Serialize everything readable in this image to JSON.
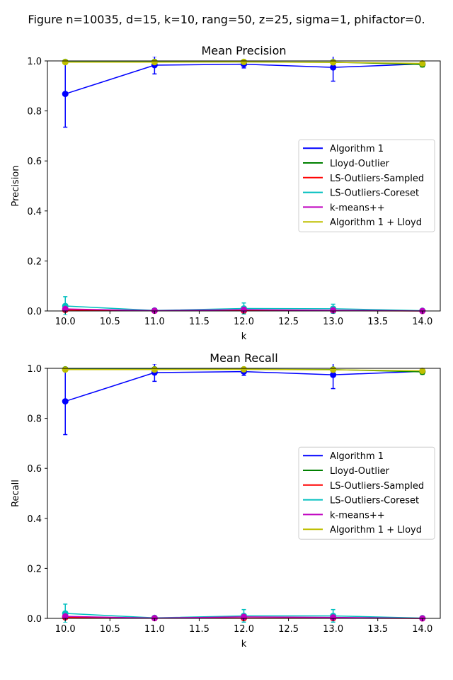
{
  "suptitle": "Figure n=10035, d=15, k=10, rang=50, z=25, sigma=1, phifactor=0.",
  "chart_data": [
    {
      "type": "line",
      "title": "Mean Precision",
      "xlabel": "k",
      "ylabel": "Precision",
      "xlim": [
        9.8,
        14.2
      ],
      "ylim": [
        0,
        1
      ],
      "xticks": [
        "10.0",
        "10.5",
        "11.0",
        "11.5",
        "12.0",
        "12.5",
        "13.0",
        "13.5",
        "14.0"
      ],
      "yticks": [
        "0.0",
        "0.2",
        "0.4",
        "0.6",
        "0.8",
        "1.0"
      ],
      "grid": false,
      "legend_position": "center-right",
      "x": [
        10,
        11,
        12,
        13,
        14
      ],
      "series": [
        {
          "name": "Algorithm 1",
          "color": "#0000ff",
          "values": [
            0.868,
            0.983,
            0.987,
            0.974,
            0.988
          ],
          "err": [
            0.133,
            0.035,
            0.015,
            0.055,
            0.008
          ]
        },
        {
          "name": "Lloyd-Outlier",
          "color": "#008000",
          "values": [
            0.996,
            0.996,
            0.996,
            0.995,
            0.986
          ],
          "err": [
            0.006,
            0.004,
            0.004,
            0.005,
            0.01
          ]
        },
        {
          "name": "LS-Outliers-Sampled",
          "color": "#ff0000",
          "values": [
            0.004,
            0.001,
            0.001,
            0.001,
            0.0
          ],
          "err": [
            0.004,
            0.001,
            0.001,
            0.001,
            0.0
          ]
        },
        {
          "name": "LS-Outliers-Coreset",
          "color": "#00bfbf",
          "values": [
            0.02,
            0.002,
            0.01,
            0.009,
            0.001
          ],
          "err": [
            0.037,
            0.002,
            0.022,
            0.018,
            0.001
          ]
        },
        {
          "name": "k-means++",
          "color": "#bf00bf",
          "values": [
            0.008,
            0.001,
            0.005,
            0.003,
            0.0
          ],
          "err": [
            0.0,
            0.0,
            0.0,
            0.0,
            0.0
          ]
        },
        {
          "name": "Algorithm 1 + Lloyd",
          "color": "#bfbf00",
          "values": [
            0.995,
            0.995,
            0.996,
            0.994,
            0.99
          ],
          "err": [
            0.0,
            0.0,
            0.0,
            0.0,
            0.0
          ]
        }
      ]
    },
    {
      "type": "line",
      "title": "Mean Recall",
      "xlabel": "k",
      "ylabel": "Recall",
      "xlim": [
        9.8,
        14.2
      ],
      "ylim": [
        0,
        1
      ],
      "xticks": [
        "10.0",
        "10.5",
        "11.0",
        "11.5",
        "12.0",
        "12.5",
        "13.0",
        "13.5",
        "14.0"
      ],
      "yticks": [
        "0.0",
        "0.2",
        "0.4",
        "0.6",
        "0.8",
        "1.0"
      ],
      "grid": false,
      "legend_position": "center-right",
      "x": [
        10,
        11,
        12,
        13,
        14
      ],
      "series": [
        {
          "name": "Algorithm 1",
          "color": "#0000ff",
          "values": [
            0.868,
            0.983,
            0.987,
            0.974,
            0.988
          ],
          "err": [
            0.133,
            0.035,
            0.015,
            0.055,
            0.008
          ]
        },
        {
          "name": "Lloyd-Outlier",
          "color": "#008000",
          "values": [
            0.996,
            0.996,
            0.996,
            0.995,
            0.986
          ],
          "err": [
            0.006,
            0.004,
            0.004,
            0.005,
            0.01
          ]
        },
        {
          "name": "LS-Outliers-Sampled",
          "color": "#ff0000",
          "values": [
            0.004,
            0.001,
            0.001,
            0.001,
            0.0
          ],
          "err": [
            0.004,
            0.001,
            0.001,
            0.001,
            0.0
          ]
        },
        {
          "name": "LS-Outliers-Coreset",
          "color": "#00bfbf",
          "values": [
            0.02,
            0.002,
            0.01,
            0.01,
            0.001
          ],
          "err": [
            0.037,
            0.002,
            0.025,
            0.025,
            0.001
          ]
        },
        {
          "name": "k-means++",
          "color": "#bf00bf",
          "values": [
            0.008,
            0.001,
            0.006,
            0.004,
            0.0
          ],
          "err": [
            0.0,
            0.0,
            0.0,
            0.0,
            0.0
          ]
        },
        {
          "name": "Algorithm 1 + Lloyd",
          "color": "#bfbf00",
          "values": [
            0.995,
            0.995,
            0.996,
            0.994,
            0.99
          ],
          "err": [
            0.0,
            0.0,
            0.0,
            0.0,
            0.0
          ]
        }
      ]
    }
  ]
}
